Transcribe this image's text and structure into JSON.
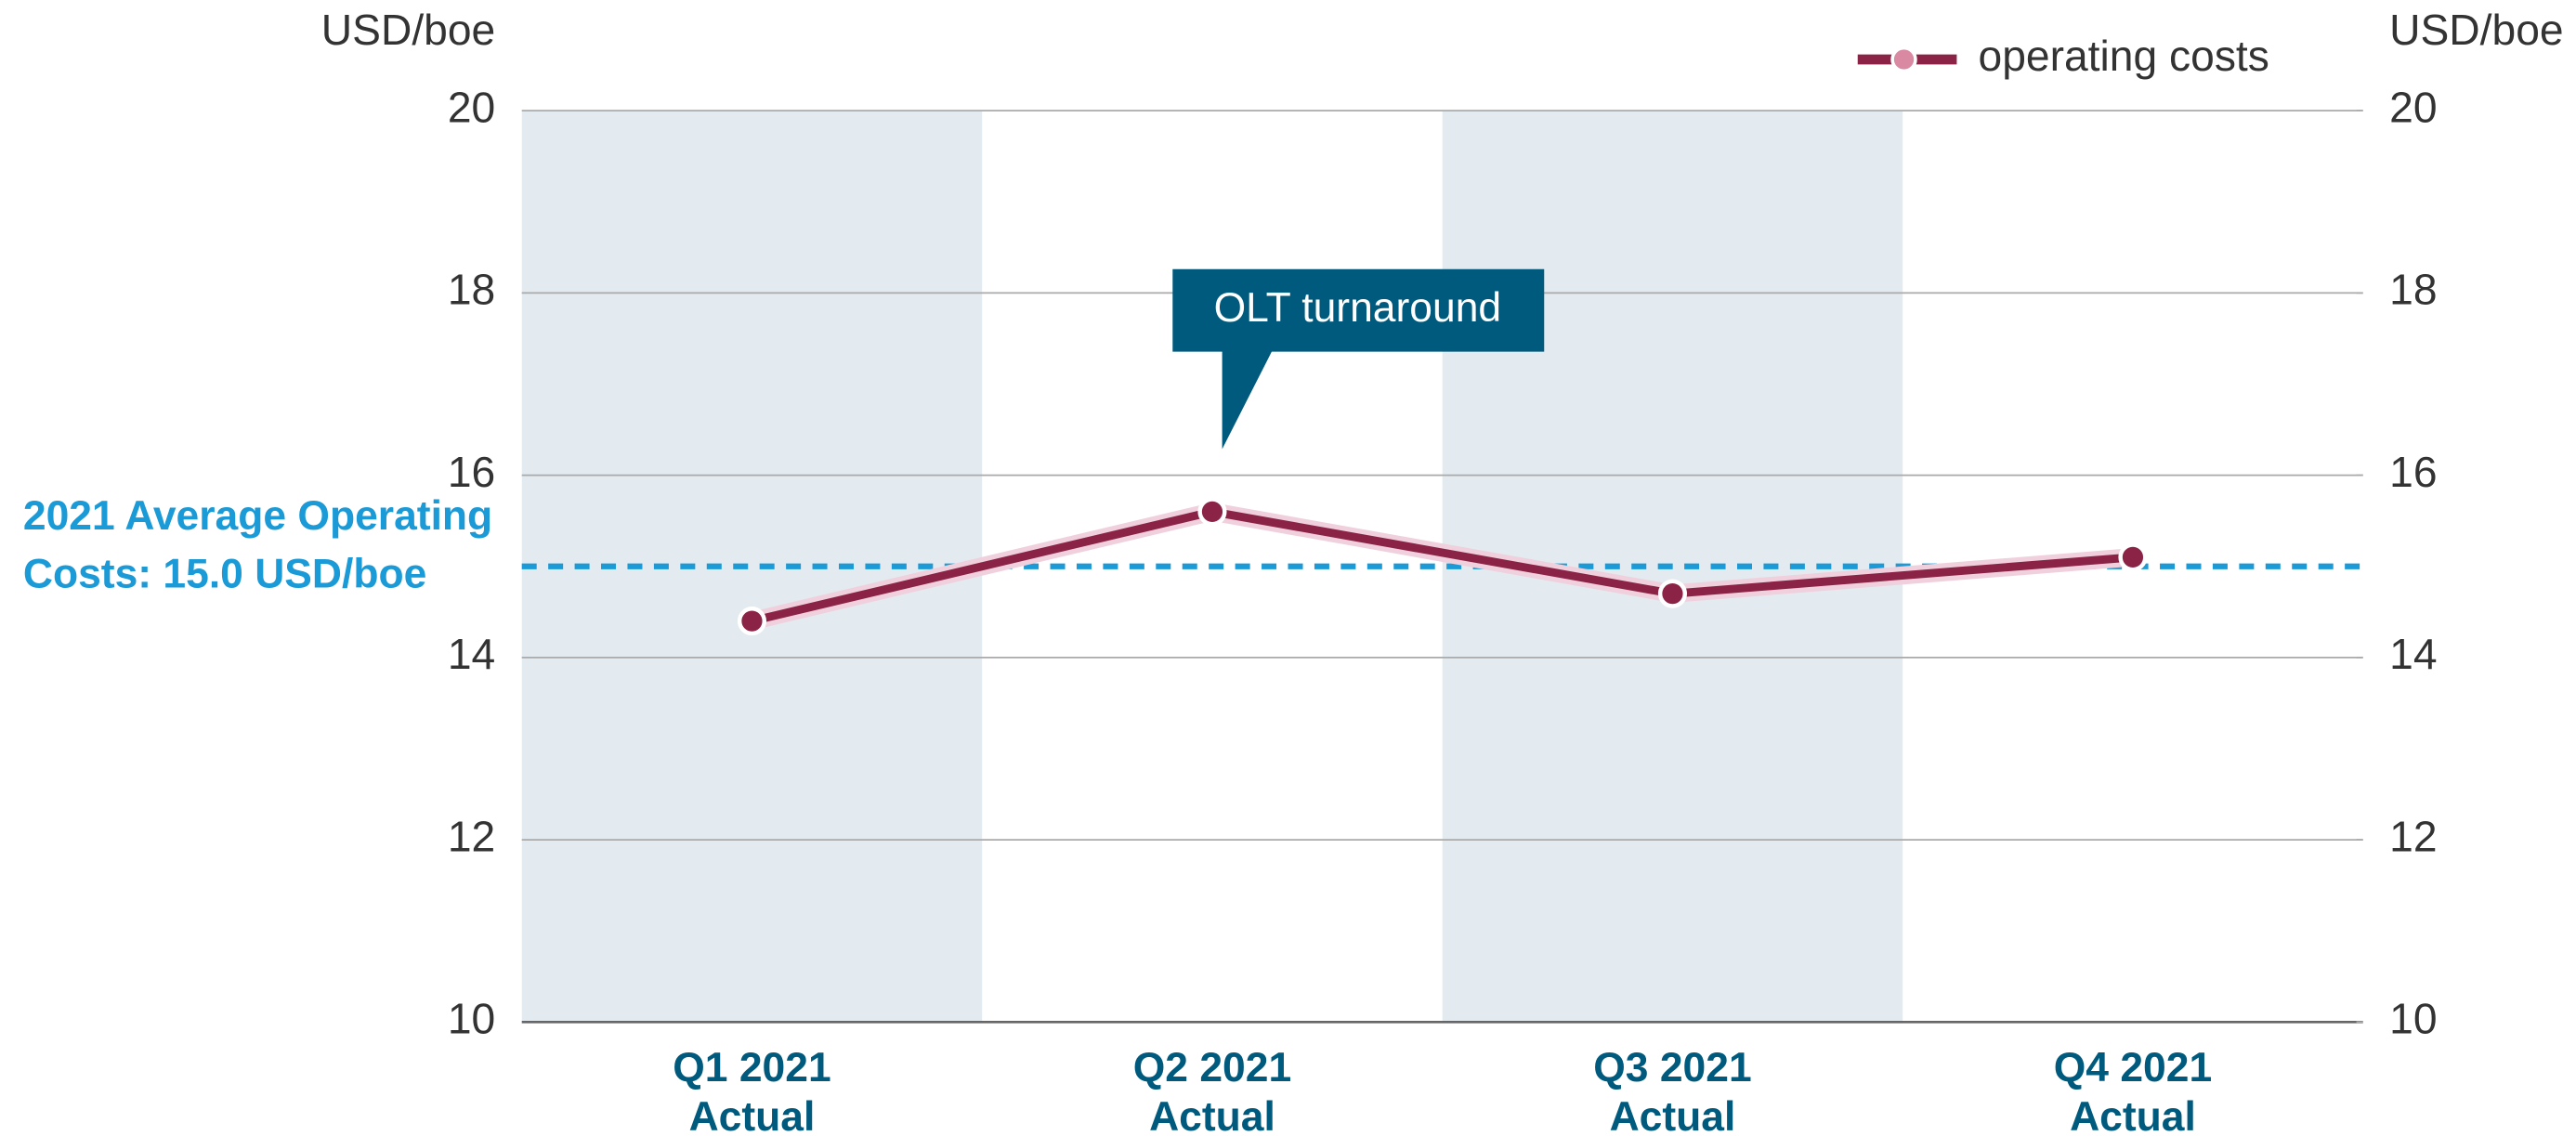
{
  "chart_data": {
    "type": "line",
    "y_axis_label": "USD/boe",
    "y2_axis_label": "USD/boe",
    "categories": [
      "Q1 2021\nActual",
      "Q2 2021\nActual",
      "Q3 2021\nActual",
      "Q4 2021\nActual"
    ],
    "series": [
      {
        "name": "operating costs",
        "color": "#8b2346",
        "values": [
          14.4,
          15.6,
          14.7,
          15.1
        ]
      }
    ],
    "ylim": [
      10,
      20
    ],
    "yticks": [
      10,
      12,
      14,
      16,
      18,
      20
    ],
    "y2lim": [
      10,
      20
    ],
    "y2ticks": [
      10,
      12,
      14,
      16,
      18,
      20
    ],
    "grid": true,
    "legend": "top-right",
    "reference_line": {
      "value": 15,
      "label": "2021 Average Operating\nCosts: 15.0 USD/boe",
      "color": "#1a9ad6"
    },
    "annotations": [
      {
        "text": "OLT turnaround",
        "category": 1
      }
    ]
  }
}
